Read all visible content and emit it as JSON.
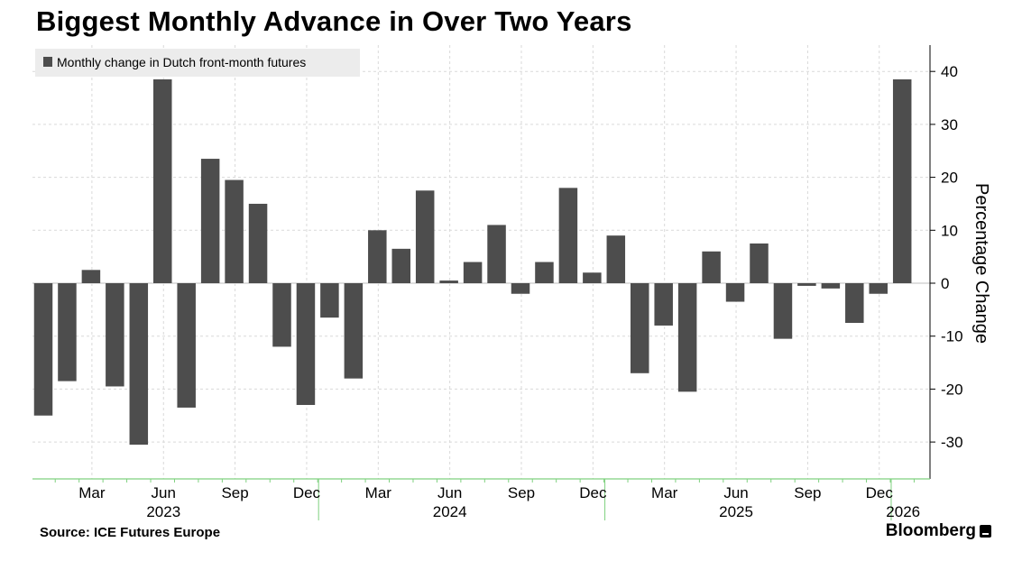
{
  "title": "Biggest Monthly Advance in Over Two Years",
  "source": "Source: ICE Futures Europe",
  "brand": "Bloomberg",
  "colors": {
    "bar": "#4d4d4d",
    "grid": "#d9d9d9",
    "zero_line": "#bfbfbf",
    "axis": "#000000",
    "x_axis_line": "#7fd17f",
    "legend_bg": "#ececec"
  },
  "chart_data": {
    "type": "bar",
    "title": "Biggest Monthly Advance in Over Two Years",
    "ylabel": "Percentage Change",
    "xlabel": "",
    "ylim": [
      -37,
      45
    ],
    "y_ticks": [
      40,
      30,
      20,
      10,
      0,
      -10,
      -20,
      -30
    ],
    "y_tick_labels": [
      "40",
      "30",
      "20",
      "10",
      "0",
      "-10",
      "-20",
      "-30"
    ],
    "legend": "Monthly change in Dutch front-month futures",
    "grid": true,
    "categories": [
      "Jan 2023",
      "Feb 2023",
      "Mar 2023",
      "Apr 2023",
      "May 2023",
      "Jun 2023",
      "Jul 2023",
      "Aug 2023",
      "Sep 2023",
      "Oct 2023",
      "Nov 2023",
      "Dec 2023",
      "Jan 2024",
      "Feb 2024",
      "Mar 2024",
      "Apr 2024",
      "May 2024",
      "Jun 2024",
      "Jul 2024",
      "Aug 2024",
      "Sep 2024",
      "Oct 2024",
      "Nov 2024",
      "Dec 2024",
      "Jan 2025",
      "Feb 2025",
      "Mar 2025",
      "Apr 2025",
      "May 2025",
      "Jun 2025",
      "Jul 2025",
      "Aug 2025",
      "Sep 2025",
      "Oct 2025",
      "Nov 2025",
      "Dec 2025",
      "Jan 2026"
    ],
    "values": [
      -25,
      -18.5,
      2.5,
      -19.5,
      -30.5,
      38.5,
      -23.5,
      23.5,
      19.5,
      15,
      -12,
      -23,
      -6.5,
      -18,
      10,
      6.5,
      17.5,
      0.5,
      4,
      11,
      -2,
      4,
      18,
      2,
      9,
      -17,
      -8,
      -20.5,
      6,
      -3.5,
      7.5,
      -10.5,
      -0.5,
      -1,
      -7.5,
      -2,
      38.5
    ],
    "x_tick_labels": [
      {
        "index": 2,
        "label": "Mar"
      },
      {
        "index": 5,
        "label": "Jun"
      },
      {
        "index": 8,
        "label": "Sep"
      },
      {
        "index": 11,
        "label": "Dec"
      },
      {
        "index": 14,
        "label": "Mar"
      },
      {
        "index": 17,
        "label": "Jun"
      },
      {
        "index": 20,
        "label": "Sep"
      },
      {
        "index": 23,
        "label": "Dec"
      },
      {
        "index": 26,
        "label": "Mar"
      },
      {
        "index": 29,
        "label": "Jun"
      },
      {
        "index": 32,
        "label": "Sep"
      },
      {
        "index": 35,
        "label": "Dec"
      }
    ],
    "year_labels": [
      {
        "index": 5,
        "label": "2023"
      },
      {
        "index": 17,
        "label": "2024"
      },
      {
        "index": 29,
        "label": "2025"
      },
      {
        "index": 36,
        "label": "2026"
      }
    ],
    "year_boundaries": [
      12,
      24,
      36
    ]
  }
}
